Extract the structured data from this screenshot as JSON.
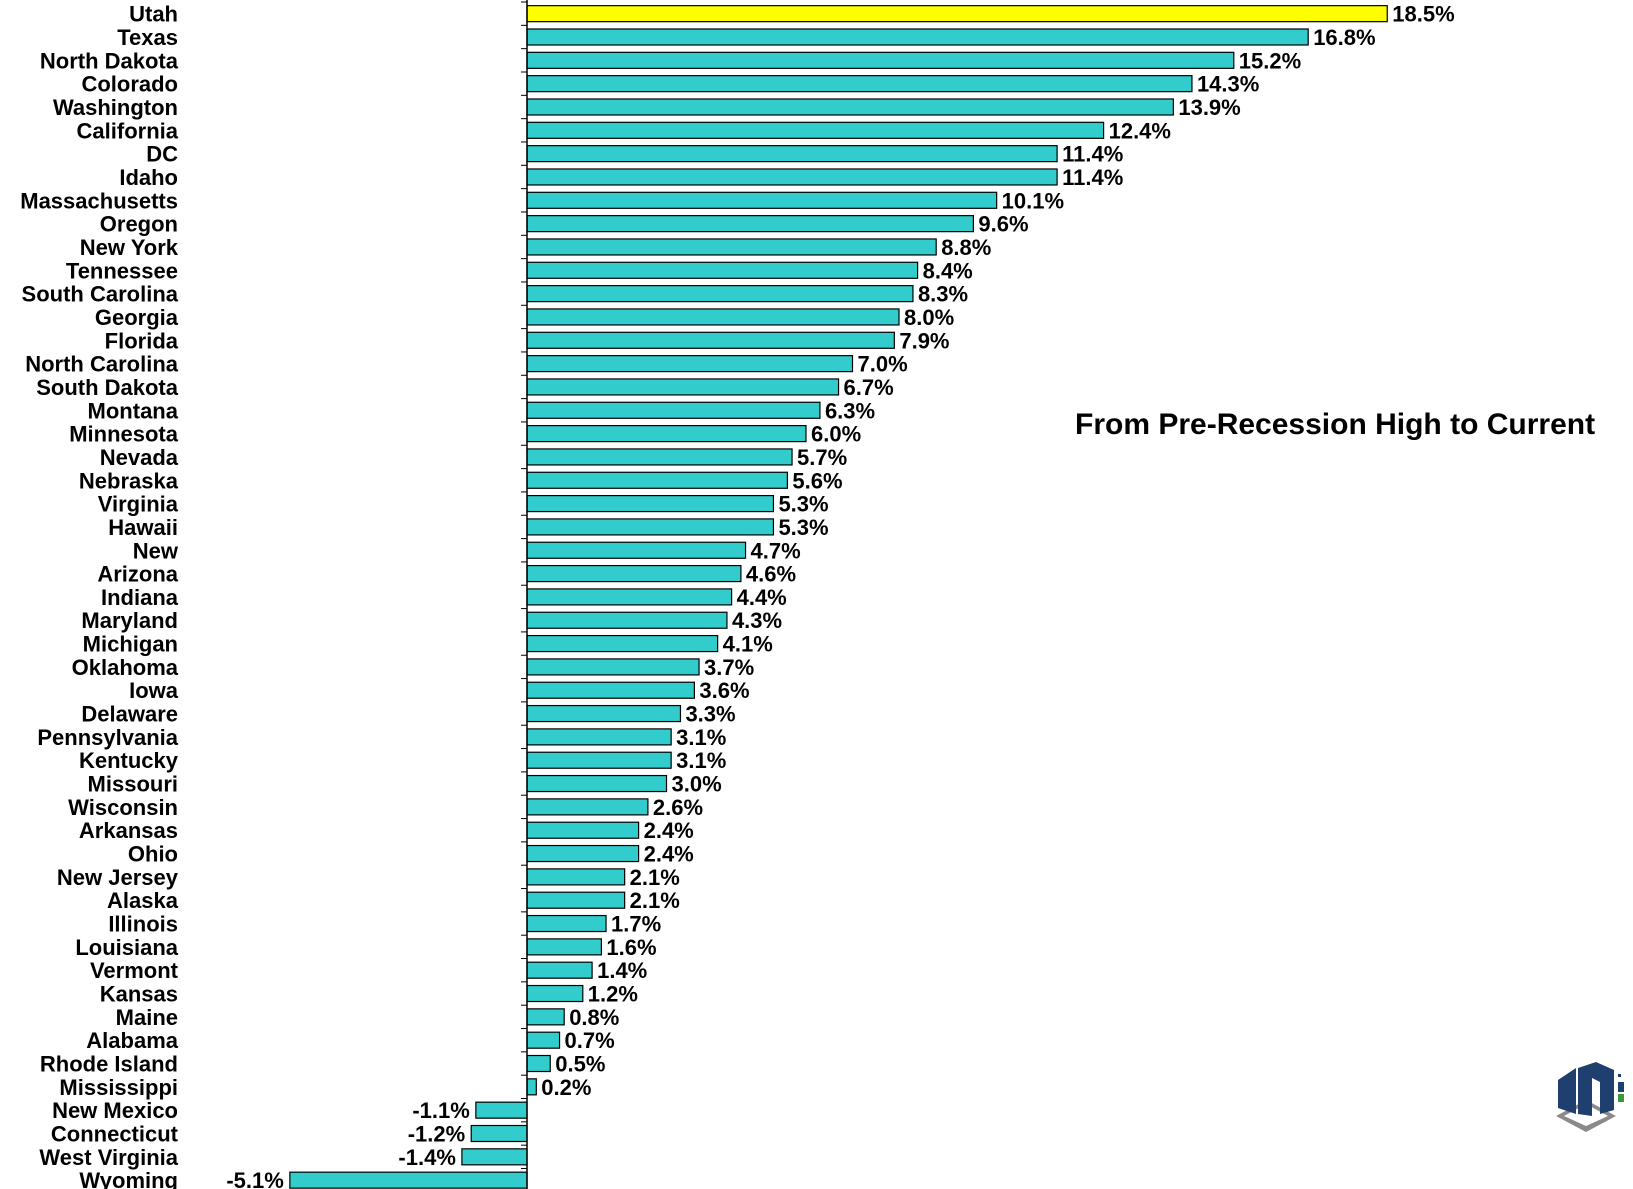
{
  "chart_data": {
    "type": "bar",
    "orientation": "horizontal",
    "title": "From Pre-Recession High to Current",
    "categories": [
      "Utah",
      "Texas",
      "North Dakota",
      "Colorado",
      "Washington",
      "California",
      "DC",
      "Idaho",
      "Massachusetts",
      "Oregon",
      "New York",
      "Tennessee",
      "South Carolina",
      "Georgia",
      "Florida",
      "North Carolina",
      "South Dakota",
      "Montana",
      "Minnesota",
      "Nevada",
      "Nebraska",
      "Virginia",
      "Hawaii",
      "New",
      "Arizona",
      "Indiana",
      "Maryland",
      "Michigan",
      "Oklahoma",
      "Iowa",
      "Delaware",
      "Pennsylvania",
      "Kentucky",
      "Missouri",
      "Wisconsin",
      "Arkansas",
      "Ohio",
      "New Jersey",
      "Alaska",
      "Illinois",
      "Louisiana",
      "Vermont",
      "Kansas",
      "Maine",
      "Alabama",
      "Rhode Island",
      "Mississippi",
      "New Mexico",
      "Connecticut",
      "West Virginia",
      "Wyoming"
    ],
    "values": [
      18.5,
      16.8,
      15.2,
      14.3,
      13.9,
      12.4,
      11.4,
      11.4,
      10.1,
      9.6,
      8.8,
      8.4,
      8.3,
      8.0,
      7.9,
      7.0,
      6.7,
      6.3,
      6.0,
      5.7,
      5.6,
      5.3,
      5.3,
      4.7,
      4.6,
      4.4,
      4.3,
      4.1,
      3.7,
      3.6,
      3.3,
      3.1,
      3.1,
      3.0,
      2.6,
      2.4,
      2.4,
      2.1,
      2.1,
      1.7,
      1.6,
      1.4,
      1.2,
      0.8,
      0.7,
      0.5,
      0.2,
      -1.1,
      -1.2,
      -1.4,
      -5.1
    ],
    "value_labels": [
      "18.5%",
      "16.8%",
      "15.2%",
      "14.3%",
      "13.9%",
      "12.4%",
      "11.4%",
      "11.4%",
      "10.1%",
      "9.6%",
      "8.8%",
      "8.4%",
      "8.3%",
      "8.0%",
      "7.9%",
      "7.0%",
      "6.7%",
      "6.3%",
      "6.0%",
      "5.7%",
      "5.6%",
      "5.3%",
      "5.3%",
      "4.7%",
      "4.6%",
      "4.4%",
      "4.3%",
      "4.1%",
      "3.7%",
      "3.6%",
      "3.3%",
      "3.1%",
      "3.1%",
      "3.0%",
      "2.6%",
      "2.4%",
      "2.4%",
      "2.1%",
      "2.1%",
      "1.7%",
      "1.6%",
      "1.4%",
      "1.2%",
      "0.8%",
      "0.7%",
      "0.5%",
      "0.2%",
      "-1.1%",
      "-1.2%",
      "-1.4%",
      "-5.1%"
    ],
    "highlight_category": "Utah",
    "colors": {
      "bar": "#33CCCC",
      "highlight": "#FFFF00",
      "outline": "#000000"
    },
    "unit": "%",
    "legend": "none",
    "grid": false
  },
  "logo": {
    "name": "agency-logo-icon",
    "colors": [
      "#1f3f6e",
      "#8a8a8a",
      "#3a9a3a"
    ]
  }
}
